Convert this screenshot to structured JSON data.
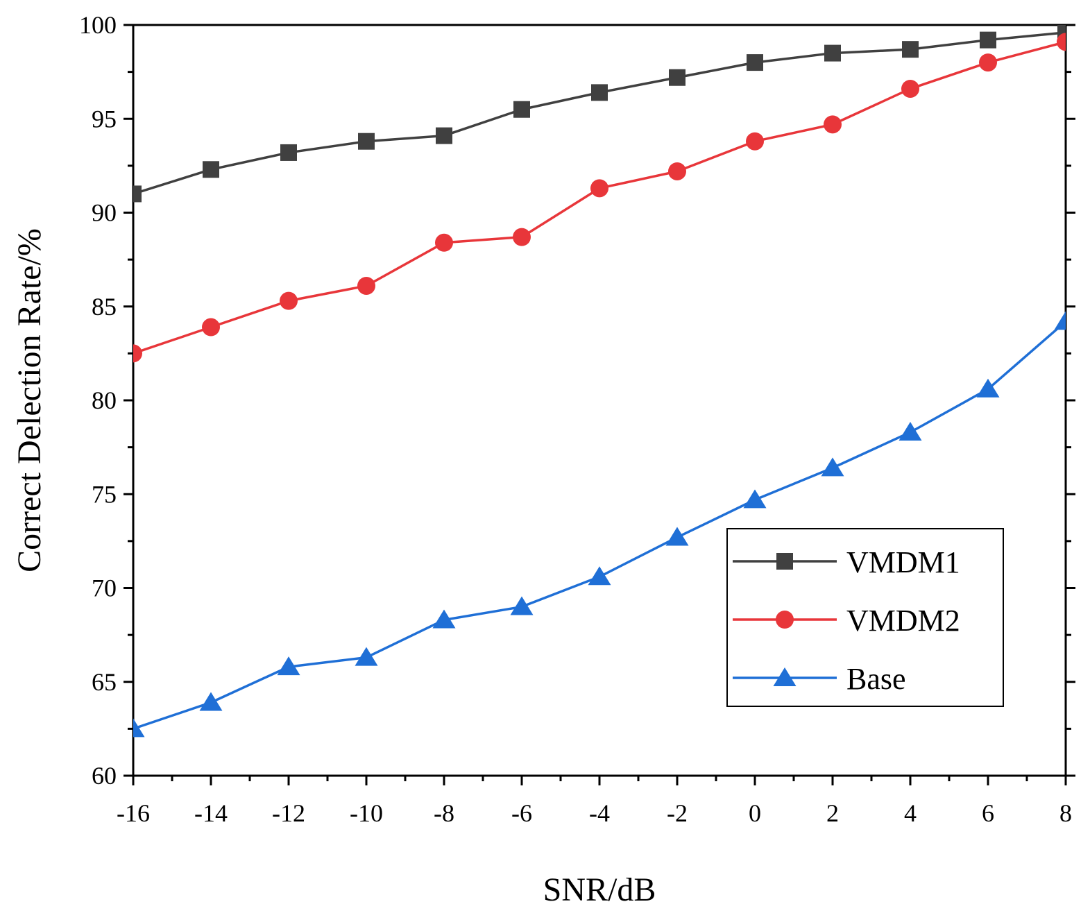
{
  "chart_data": {
    "type": "line",
    "title": "",
    "xlabel": "SNR/dB",
    "ylabel": "Correct Delection Rate/%",
    "x": [
      -16,
      -14,
      -12,
      -10,
      -8,
      -6,
      -4,
      -2,
      0,
      2,
      4,
      6,
      8
    ],
    "xlim": [
      -16,
      8
    ],
    "ylim": [
      60,
      100
    ],
    "xticks": [
      -16,
      -14,
      -12,
      -10,
      -8,
      -6,
      -4,
      -2,
      0,
      2,
      4,
      6,
      8
    ],
    "xtick_labels": [
      "-16",
      "-14",
      "-12",
      "-10",
      "-8",
      "-6",
      "-4",
      "-2",
      "0",
      "2",
      "4",
      "6",
      "8"
    ],
    "yticks": [
      60,
      65,
      70,
      75,
      80,
      85,
      90,
      95,
      100
    ],
    "ytick_labels": [
      "60",
      "65",
      "70",
      "75",
      "80",
      "85",
      "90",
      "95",
      "100"
    ],
    "grid": false,
    "legend_position": "lower-right",
    "series": [
      {
        "name": "VMDM1",
        "marker": "square",
        "color": "#404040",
        "values": [
          91.0,
          92.3,
          93.2,
          93.8,
          94.1,
          95.5,
          96.4,
          97.2,
          98.0,
          98.5,
          98.7,
          99.2,
          99.6
        ]
      },
      {
        "name": "VMDM2",
        "marker": "circle",
        "color": "#e8363a",
        "values": [
          82.5,
          83.9,
          85.3,
          86.1,
          88.4,
          88.7,
          91.3,
          92.2,
          93.8,
          94.7,
          96.6,
          98.0,
          99.1
        ]
      },
      {
        "name": "Base",
        "marker": "triangle",
        "color": "#1f6fd6",
        "values": [
          62.5,
          63.9,
          65.8,
          66.3,
          68.3,
          69.0,
          70.6,
          72.7,
          74.7,
          76.4,
          78.3,
          80.6,
          84.2
        ]
      }
    ]
  }
}
